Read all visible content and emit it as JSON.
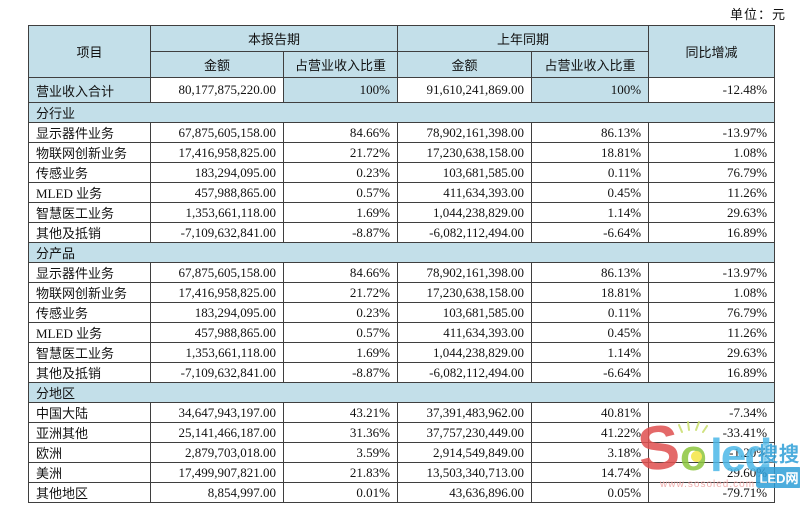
{
  "unit_label": "单位：元",
  "colors": {
    "header_bg": "#c3dfe9",
    "border": "#3f3f3f",
    "watermark_red": "#e0504f",
    "watermark_green": "#8cc63e",
    "watermark_blue": "#4cb8e8",
    "watermark_badge_blue": "#2f9fd8"
  },
  "table": {
    "header": {
      "item": "项目",
      "current_period": "本报告期",
      "prior_period": "上年同期",
      "yoy_change": "同比增减",
      "amount_current": "金额",
      "share_current": "占营业收入比重",
      "amount_prior": "金额",
      "share_prior": "占营业收入比重"
    },
    "total_row": {
      "label": "营业收入合计",
      "cells": [
        "80,177,875,220.00",
        "100%",
        "91,610,241,869.00",
        "100%",
        "-12.48%"
      ]
    },
    "sections": [
      {
        "title": "分行业",
        "rows": [
          {
            "label": "显示器件业务",
            "cells": [
              "67,875,605,158.00",
              "84.66%",
              "78,902,161,398.00",
              "86.13%",
              "-13.97%"
            ]
          },
          {
            "label": "物联网创新业务",
            "cells": [
              "17,416,958,825.00",
              "21.72%",
              "17,230,638,158.00",
              "18.81%",
              "1.08%"
            ]
          },
          {
            "label": "传感业务",
            "cells": [
              "183,294,095.00",
              "0.23%",
              "103,681,585.00",
              "0.11%",
              "76.79%"
            ]
          },
          {
            "label": "MLED 业务",
            "cells": [
              "457,988,865.00",
              "0.57%",
              "411,634,393.00",
              "0.45%",
              "11.26%"
            ]
          },
          {
            "label": "智慧医工业务",
            "cells": [
              "1,353,661,118.00",
              "1.69%",
              "1,044,238,829.00",
              "1.14%",
              "29.63%"
            ]
          },
          {
            "label": "其他及抵销",
            "cells": [
              "-7,109,632,841.00",
              "-8.87%",
              "-6,082,112,494.00",
              "-6.64%",
              "16.89%"
            ]
          }
        ]
      },
      {
        "title": "分产品",
        "rows": [
          {
            "label": "显示器件业务",
            "cells": [
              "67,875,605,158.00",
              "84.66%",
              "78,902,161,398.00",
              "86.13%",
              "-13.97%"
            ]
          },
          {
            "label": "物联网创新业务",
            "cells": [
              "17,416,958,825.00",
              "21.72%",
              "17,230,638,158.00",
              "18.81%",
              "1.08%"
            ]
          },
          {
            "label": "传感业务",
            "cells": [
              "183,294,095.00",
              "0.23%",
              "103,681,585.00",
              "0.11%",
              "76.79%"
            ]
          },
          {
            "label": "MLED 业务",
            "cells": [
              "457,988,865.00",
              "0.57%",
              "411,634,393.00",
              "0.45%",
              "11.26%"
            ]
          },
          {
            "label": "智慧医工业务",
            "cells": [
              "1,353,661,118.00",
              "1.69%",
              "1,044,238,829.00",
              "1.14%",
              "29.63%"
            ]
          },
          {
            "label": "其他及抵销",
            "cells": [
              "-7,109,632,841.00",
              "-8.87%",
              "-6,082,112,494.00",
              "-6.64%",
              "16.89%"
            ]
          }
        ]
      },
      {
        "title": "分地区",
        "rows": [
          {
            "label": "中国大陆",
            "cells": [
              "34,647,943,197.00",
              "43.21%",
              "37,391,483,962.00",
              "40.81%",
              "-7.34%"
            ]
          },
          {
            "label": "亚洲其他",
            "cells": [
              "25,141,466,187.00",
              "31.36%",
              "37,757,230,449.00",
              "41.22%",
              "-33.41%"
            ]
          },
          {
            "label": "欧洲",
            "cells": [
              "2,879,703,018.00",
              "3.59%",
              "2,914,549,849.00",
              "3.18%",
              "-1.20%"
            ]
          },
          {
            "label": "美洲",
            "cells": [
              "17,499,907,821.00",
              "21.83%",
              "13,503,340,713.00",
              "14.74%",
              "29.60%"
            ]
          },
          {
            "label": "其他地区",
            "cells": [
              "8,854,997.00",
              "0.01%",
              "43,636,896.00",
              "0.05%",
              "-79.71%"
            ]
          }
        ]
      }
    ]
  },
  "watermark": {
    "letter_s": "S",
    "letter_o": "o",
    "letters_led": "led",
    "url": "www.sosoled.com",
    "badge_top": "搜搜",
    "badge_bottom": "LED网"
  }
}
